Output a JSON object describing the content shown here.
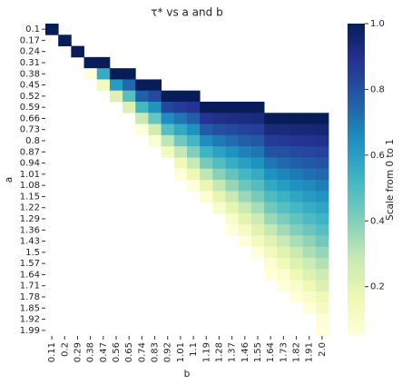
{
  "chart_data": {
    "type": "heatmap",
    "title": "τ* vs a and b",
    "xlabel": "b",
    "ylabel": "a",
    "colorbar_label": "Scale from 0 to 1",
    "x_categories": [
      "0.11",
      "0.2",
      "0.29",
      "0.38",
      "0.47",
      "0.56",
      "0.65",
      "0.74",
      "0.83",
      "0.92",
      "1.01",
      "1.1",
      "1.19",
      "1.28",
      "1.37",
      "1.46",
      "1.55",
      "1.64",
      "1.73",
      "1.82",
      "1.91",
      "2.0"
    ],
    "y_categories": [
      "0.1",
      "0.17",
      "0.24",
      "0.31",
      "0.38",
      "0.45",
      "0.52",
      "0.59",
      "0.66",
      "0.73",
      "0.8",
      "0.87",
      "0.94",
      "1.01",
      "1.08",
      "1.15",
      "1.22",
      "1.29",
      "1.36",
      "1.43",
      "1.5",
      "1.57",
      "1.64",
      "1.71",
      "1.78",
      "1.85",
      "1.92",
      "1.99"
    ],
    "values": [
      [
        1,
        null,
        null,
        null,
        null,
        null,
        null,
        null,
        null,
        null,
        null,
        null,
        null,
        null,
        null,
        null,
        null,
        null,
        null,
        null,
        null,
        null
      ],
      [
        null,
        1,
        null,
        null,
        null,
        null,
        null,
        null,
        null,
        null,
        null,
        null,
        null,
        null,
        null,
        null,
        null,
        null,
        null,
        null,
        null,
        null
      ],
      [
        null,
        null,
        1,
        null,
        null,
        null,
        null,
        null,
        null,
        null,
        null,
        null,
        null,
        null,
        null,
        null,
        null,
        null,
        null,
        null,
        null,
        null
      ],
      [
        null,
        null,
        null,
        1,
        1,
        null,
        null,
        null,
        null,
        null,
        null,
        null,
        null,
        null,
        null,
        null,
        null,
        null,
        null,
        null,
        null,
        null
      ],
      [
        null,
        null,
        null,
        0.02,
        0.56,
        1,
        1,
        null,
        null,
        null,
        null,
        null,
        null,
        null,
        null,
        null,
        null,
        null,
        null,
        null,
        null,
        null
      ],
      [
        null,
        null,
        null,
        null,
        0.13,
        0.61,
        0.74,
        1,
        1,
        null,
        null,
        null,
        null,
        null,
        null,
        null,
        null,
        null,
        null,
        null,
        null,
        null
      ],
      [
        null,
        null,
        null,
        null,
        null,
        0.22,
        0.48,
        0.76,
        0.82,
        1,
        1,
        1,
        null,
        null,
        null,
        null,
        null,
        null,
        null,
        null,
        null,
        null
      ],
      [
        null,
        null,
        null,
        null,
        null,
        null,
        0.22,
        0.52,
        0.63,
        0.83,
        0.86,
        0.88,
        1,
        1,
        1,
        1,
        1,
        null,
        null,
        null,
        null,
        null
      ],
      [
        null,
        null,
        null,
        null,
        null,
        null,
        null,
        0.28,
        0.45,
        0.65,
        0.71,
        0.76,
        0.88,
        0.9,
        0.91,
        0.92,
        0.93,
        1,
        1,
        1,
        1,
        1
      ],
      [
        null,
        null,
        null,
        null,
        null,
        null,
        null,
        0.03,
        0.26,
        0.48,
        0.57,
        0.64,
        0.77,
        0.8,
        0.82,
        0.84,
        0.85,
        0.93,
        0.93,
        0.94,
        0.94,
        0.95
      ],
      [
        null,
        null,
        null,
        null,
        null,
        null,
        null,
        null,
        0.08,
        0.3,
        0.43,
        0.52,
        0.65,
        0.7,
        0.73,
        0.76,
        0.78,
        0.86,
        0.87,
        0.88,
        0.89,
        0.9
      ],
      [
        null,
        null,
        null,
        null,
        null,
        null,
        null,
        null,
        null,
        0.13,
        0.29,
        0.4,
        0.53,
        0.59,
        0.64,
        0.68,
        0.71,
        0.79,
        0.8,
        0.82,
        0.83,
        0.84
      ],
      [
        null,
        null,
        null,
        null,
        null,
        null,
        null,
        null,
        null,
        null,
        0.14,
        0.28,
        0.42,
        0.49,
        0.55,
        0.6,
        0.64,
        0.71,
        0.74,
        0.76,
        0.78,
        0.79
      ],
      [
        null,
        null,
        null,
        null,
        null,
        null,
        null,
        null,
        null,
        null,
        0.02,
        0.16,
        0.3,
        0.39,
        0.46,
        0.52,
        0.56,
        0.64,
        0.67,
        0.7,
        0.72,
        0.74
      ],
      [
        null,
        null,
        null,
        null,
        null,
        null,
        null,
        null,
        null,
        null,
        null,
        0.03,
        0.18,
        0.29,
        0.37,
        0.44,
        0.49,
        0.57,
        0.61,
        0.64,
        0.66,
        0.69
      ],
      [
        null,
        null,
        null,
        null,
        null,
        null,
        null,
        null,
        null,
        null,
        null,
        null,
        0.07,
        0.19,
        0.28,
        0.36,
        0.42,
        0.5,
        0.54,
        0.58,
        0.61,
        0.63
      ],
      [
        null,
        null,
        null,
        null,
        null,
        null,
        null,
        null,
        null,
        null,
        null,
        null,
        null,
        0.09,
        0.19,
        0.28,
        0.34,
        0.43,
        0.48,
        0.52,
        0.55,
        0.58
      ],
      [
        null,
        null,
        null,
        null,
        null,
        null,
        null,
        null,
        null,
        null,
        null,
        null,
        null,
        null,
        0.1,
        0.2,
        0.27,
        0.36,
        0.41,
        0.46,
        0.5,
        0.53
      ],
      [
        null,
        null,
        null,
        null,
        null,
        null,
        null,
        null,
        null,
        null,
        null,
        null,
        null,
        null,
        0.01,
        0.11,
        0.2,
        0.29,
        0.35,
        0.4,
        0.44,
        0.48
      ],
      [
        null,
        null,
        null,
        null,
        null,
        null,
        null,
        null,
        null,
        null,
        null,
        null,
        null,
        null,
        null,
        0.03,
        0.13,
        0.21,
        0.28,
        0.34,
        0.38,
        0.43
      ],
      [
        null,
        null,
        null,
        null,
        null,
        null,
        null,
        null,
        null,
        null,
        null,
        null,
        null,
        null,
        null,
        null,
        0.05,
        0.14,
        0.21,
        0.28,
        0.33,
        0.37
      ],
      [
        null,
        null,
        null,
        null,
        null,
        null,
        null,
        null,
        null,
        null,
        null,
        null,
        null,
        null,
        null,
        null,
        null,
        0.07,
        0.15,
        0.22,
        0.27,
        0.32
      ],
      [
        null,
        null,
        null,
        null,
        null,
        null,
        null,
        null,
        null,
        null,
        null,
        null,
        null,
        null,
        null,
        null,
        null,
        0.02,
        0.08,
        0.16,
        0.22,
        0.27
      ],
      [
        null,
        null,
        null,
        null,
        null,
        null,
        null,
        null,
        null,
        null,
        null,
        null,
        null,
        null,
        null,
        null,
        null,
        null,
        0.02,
        0.09,
        0.16,
        0.22
      ],
      [
        null,
        null,
        null,
        null,
        null,
        null,
        null,
        null,
        null,
        null,
        null,
        null,
        null,
        null,
        null,
        null,
        null,
        null,
        null,
        0.03,
        0.1,
        0.16
      ],
      [
        null,
        null,
        null,
        null,
        null,
        null,
        null,
        null,
        null,
        null,
        null,
        null,
        null,
        null,
        null,
        null,
        null,
        null,
        null,
        null,
        0.05,
        0.11
      ],
      [
        null,
        null,
        null,
        null,
        null,
        null,
        null,
        null,
        null,
        null,
        null,
        null,
        null,
        null,
        null,
        null,
        null,
        null,
        null,
        null,
        null,
        0.06
      ],
      [
        null,
        null,
        null,
        null,
        null,
        null,
        null,
        null,
        null,
        null,
        null,
        null,
        null,
        null,
        null,
        null,
        null,
        null,
        null,
        null,
        null,
        0.01
      ]
    ],
    "clim": [
      0.05,
      1.0
    ],
    "cticks": [
      0.2,
      0.4,
      0.6,
      0.8,
      {
        "value": 1,
        "label": "1.0"
      }
    ],
    "colormap": [
      "#ffffd9",
      "#edf8b1",
      "#c7e9b4",
      "#7fcdbb",
      "#41b6c4",
      "#1d91c0",
      "#225ea8",
      "#253494",
      "#081d58"
    ]
  }
}
